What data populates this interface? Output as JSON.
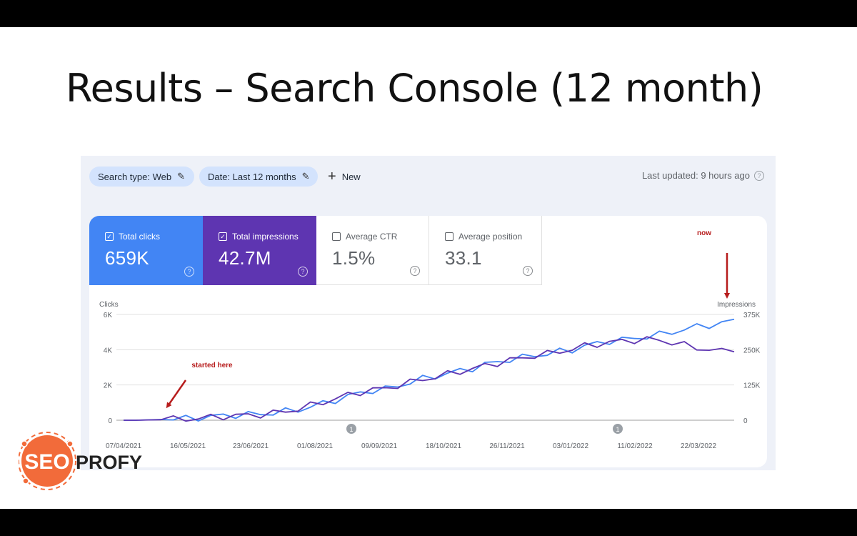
{
  "slide": {
    "title": "Results – Search Console (12 month)"
  },
  "toolbar": {
    "search_type": "Search type: Web",
    "date_range": "Date: Last 12 months",
    "new_label": "New",
    "last_updated": "Last updated: 9 hours ago"
  },
  "metrics": [
    {
      "label": "Total clicks",
      "value": "659K",
      "checked": true,
      "color": "#4285f4"
    },
    {
      "label": "Total impressions",
      "value": "42.7M",
      "checked": true,
      "color": "#5e35b1"
    },
    {
      "label": "Average CTR",
      "value": "1.5%",
      "checked": false
    },
    {
      "label": "Average position",
      "value": "33.1",
      "checked": false
    }
  ],
  "annotations": {
    "now": "now",
    "started": "started here",
    "arrow_color": "#b71c1c"
  },
  "logo": {
    "part1": "SEO",
    "part2": "PROFY",
    "color": "#f26b3a"
  },
  "chart_data": {
    "type": "line",
    "left_axis_title": "Clicks",
    "right_axis_title": "Impressions",
    "left_ticks": [
      "6K",
      "4K",
      "2K",
      "0"
    ],
    "right_ticks": [
      "375K",
      "250K",
      "125K",
      "0"
    ],
    "ylim_left": [
      0,
      6000
    ],
    "ylim_right": [
      0,
      375000
    ],
    "x_ticks": [
      "07/04/2021",
      "16/05/2021",
      "23/06/2021",
      "01/08/2021",
      "09/09/2021",
      "18/10/2021",
      "26/11/2021",
      "03/01/2022",
      "11/02/2022",
      "22/03/2022"
    ],
    "event_markers": [
      "1",
      "1"
    ],
    "series": [
      {
        "name": "Total clicks",
        "color": "#4285f4",
        "axis": "left",
        "values": [
          0,
          0,
          20,
          40,
          60,
          100,
          150,
          200,
          260,
          300,
          320,
          350,
          420,
          500,
          600,
          750,
          950,
          1150,
          1350,
          1550,
          1700,
          1750,
          1950,
          2150,
          2350,
          2500,
          2650,
          2800,
          2950,
          3150,
          3300,
          3450,
          3550,
          3700,
          3750,
          3900,
          4000,
          4200,
          4350,
          4500,
          4550,
          4650,
          4750,
          4850,
          5000,
          5150,
          5300,
          5400,
          5500,
          5650
        ]
      },
      {
        "name": "Total impressions",
        "color": "#5e35b1",
        "axis": "right",
        "values": [
          0,
          0,
          900,
          1800,
          2800,
          4500,
          7000,
          10000,
          13500,
          16000,
          17500,
          20000,
          25000,
          31000,
          40000,
          52000,
          64000,
          76000,
          89000,
          100000,
          108000,
          112000,
          124000,
          134000,
          145000,
          153000,
          163000,
          173000,
          182000,
          193000,
          203000,
          213000,
          220000,
          230000,
          235000,
          244000,
          252000,
          263000,
          270000,
          276000,
          280000,
          284000,
          286000,
          284000,
          276000,
          266000,
          257000,
          250000,
          244000,
          255000
        ]
      }
    ]
  }
}
